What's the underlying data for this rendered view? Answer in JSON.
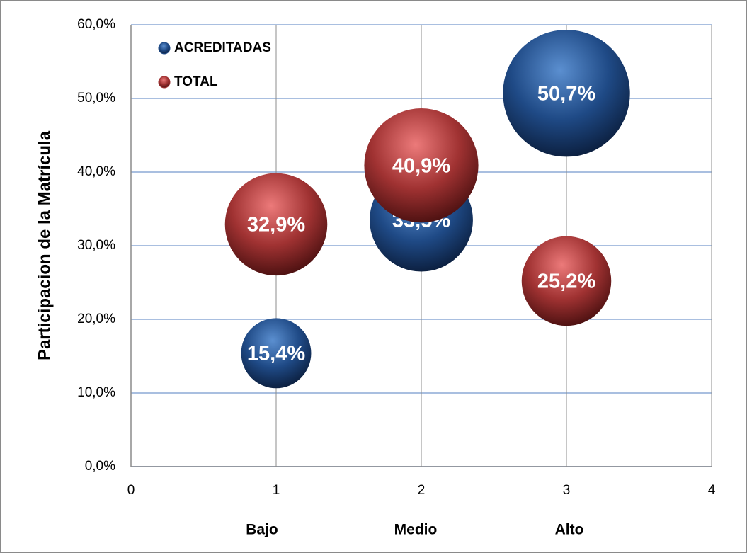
{
  "chart_data": {
    "type": "bubble",
    "y_label": "Participacion de la Matrícula",
    "category_labels": [
      "Bajo",
      "Medio",
      "Alto"
    ],
    "xlim": [
      0,
      4
    ],
    "xticks": [
      0,
      1,
      2,
      3,
      4
    ],
    "ylim": [
      0,
      60
    ],
    "yticks": [
      {
        "value": 0,
        "label": "0,0%"
      },
      {
        "value": 10,
        "label": "10,0%"
      },
      {
        "value": 20,
        "label": "20,0%"
      },
      {
        "value": 30,
        "label": "30,0%"
      },
      {
        "value": 40,
        "label": "40,0%"
      },
      {
        "value": 50,
        "label": "50,0%"
      },
      {
        "value": 60,
        "label": "60,0%"
      }
    ],
    "grid": true,
    "legend": "top-left",
    "series": [
      {
        "name": "ACREDITADAS",
        "color": "#1f4a86",
        "x": [
          1,
          2,
          3
        ],
        "values": [
          15.4,
          33.5,
          50.7
        ],
        "sizes": [
          15.4,
          33.5,
          50.7
        ],
        "value_labels": [
          "15,4%",
          "33,5%",
          "50,7%"
        ]
      },
      {
        "name": "TOTAL",
        "color": "#a03232",
        "x": [
          1,
          2,
          3
        ],
        "values": [
          32.9,
          40.9,
          25.2
        ],
        "sizes": [
          32.9,
          40.9,
          25.2
        ],
        "value_labels": [
          "32,9%",
          "40,9%",
          "25,2%"
        ]
      }
    ]
  }
}
